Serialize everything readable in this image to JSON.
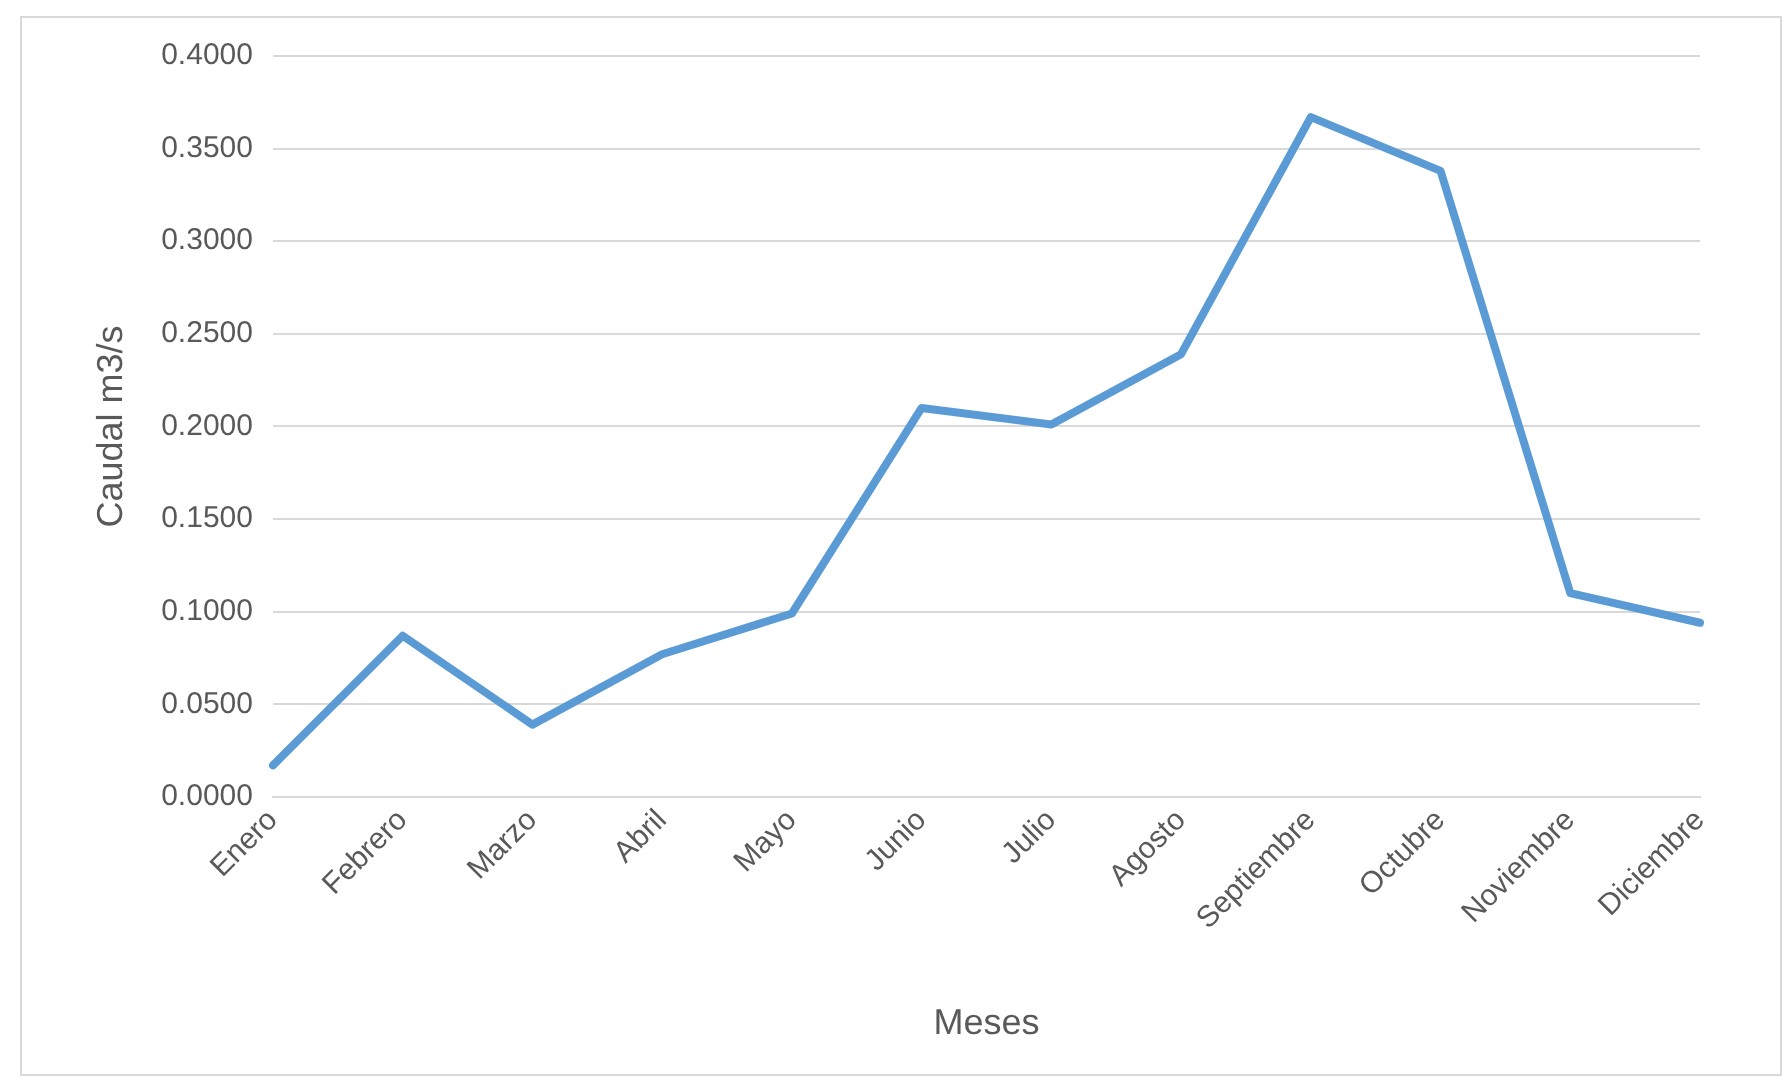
{
  "chart_data": {
    "type": "line",
    "xlabel": "Meses",
    "ylabel": "Caudal m3/s",
    "categories": [
      "Enero",
      "Febrero",
      "Marzo",
      "Abril",
      "Mayo",
      "Junio",
      "Julio",
      "Agosto",
      "Septiembre",
      "Octubre",
      "Noviembre",
      "Diciembre"
    ],
    "series": [
      {
        "color": "#5b9bd5",
        "values": [
          0.017,
          0.087,
          0.039,
          0.077,
          0.099,
          0.21,
          0.201,
          0.239,
          0.367,
          0.338,
          0.11,
          0.094
        ]
      }
    ],
    "ylim": [
      0,
      0.4
    ],
    "yticks": [
      {
        "value": 0,
        "label": "0.0000"
      },
      {
        "value": 0.05,
        "label": "0.0500"
      },
      {
        "value": 0.1,
        "label": "0.1000"
      },
      {
        "value": 0.15,
        "label": "0.1500"
      },
      {
        "value": 0.2,
        "label": "0.2000"
      },
      {
        "value": 0.25,
        "label": "0.2500"
      },
      {
        "value": 0.3,
        "label": "0.3000"
      },
      {
        "value": 0.35,
        "label": "0.3500"
      },
      {
        "value": 0.4,
        "label": "0.4000"
      }
    ],
    "grid": "y",
    "legend": false,
    "marker": "none",
    "line_style": "solid"
  }
}
